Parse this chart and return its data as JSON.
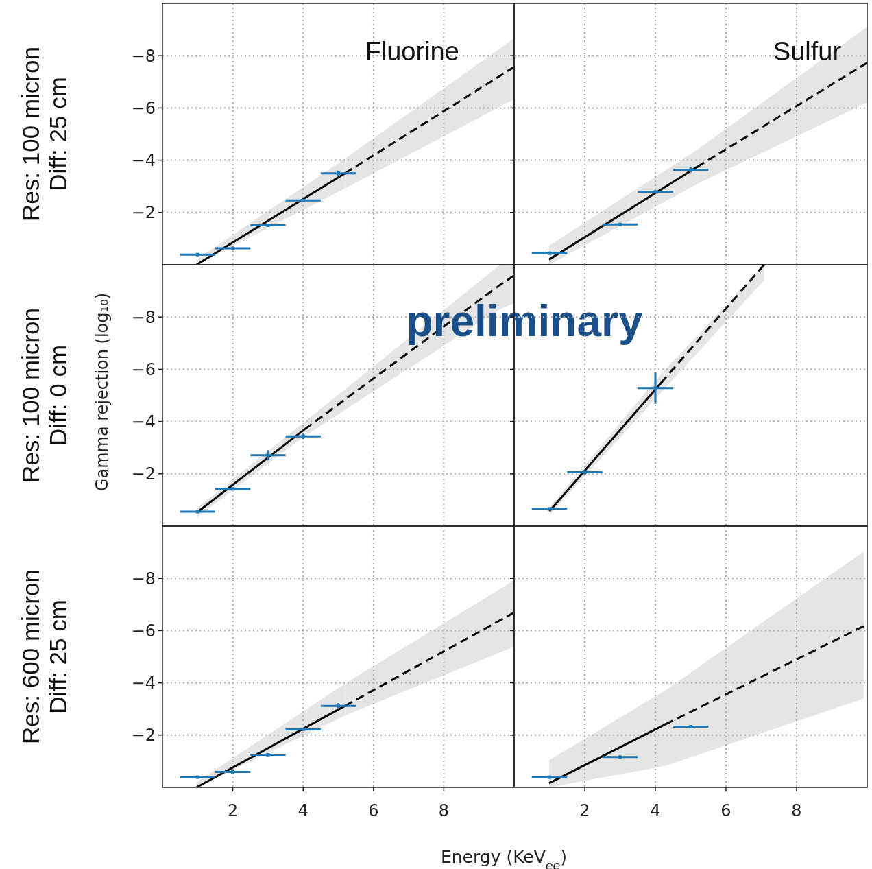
{
  "chart_data": [
    {
      "type": "scatter",
      "title": "Fluorine",
      "annotations": [
        "Res: 100 micron\nDiff: 25 cm"
      ],
      "xlim": [
        0,
        10
      ],
      "ylim": [
        0,
        -10
      ],
      "xticks": [
        2,
        4,
        6,
        8
      ],
      "yticks": [
        {
          "value": -8,
          "label": "−8"
        },
        {
          "value": -6,
          "label": "−6"
        },
        {
          "value": -4,
          "label": "−4"
        },
        {
          "value": -2,
          "label": "−2"
        }
      ],
      "grid": true,
      "tick_labels": "y",
      "series": [
        {
          "color": "#1f77b4",
          "x": [
            1,
            2,
            3,
            4,
            5
          ],
          "values": [
            -0.39,
            -0.63,
            -1.51,
            -2.46,
            -3.5
          ],
          "xerrors": [
            0.5,
            0.5,
            0.5,
            0.5,
            0.5
          ],
          "errors": [
            null,
            null,
            null,
            null,
            0.1
          ]
        },
        {
          "type": "line",
          "color": "#000000",
          "line_style": "solid",
          "x": [
            0.97,
            5.19
          ],
          "values": [
            0,
            -3.5
          ],
          "lower": [
            -0.2,
            -4.06
          ],
          "upper": [
            0,
            -2.92
          ]
        },
        {
          "type": "line",
          "color": "#000000",
          "line_style": "dashed",
          "x": [
            5.19,
            10
          ],
          "values": [
            -3.5,
            -7.57
          ],
          "lower": [
            -4.06,
            -8.67
          ],
          "upper": [
            -2.92,
            -6.34
          ]
        }
      ]
    },
    {
      "type": "scatter",
      "title": "Sulfur",
      "xlim": [
        0,
        10
      ],
      "ylim": [
        0,
        -10
      ],
      "xticks": [
        2,
        4,
        6,
        8
      ],
      "yticks": [
        {
          "value": -8,
          "label": null
        },
        {
          "value": -6,
          "label": null
        },
        {
          "value": -4,
          "label": null
        },
        {
          "value": -2,
          "label": null
        }
      ],
      "grid": true,
      "tick_labels": false,
      "series": [
        {
          "color": "#1f77b4",
          "x": [
            1,
            3,
            4,
            5
          ],
          "values": [
            -0.44,
            -1.54,
            -2.79,
            -3.63
          ],
          "xerrors": [
            0.5,
            0.5,
            0.5,
            0.5
          ],
          "errors": [
            null,
            null,
            null,
            0.1
          ]
        },
        {
          "type": "line",
          "color": "#000000",
          "line_style": "solid",
          "x": [
            0.99,
            5.19
          ],
          "values": [
            -0.2,
            -3.75
          ],
          "lower": [
            -0.73,
            -4.41
          ],
          "upper": [
            0,
            -3.1
          ]
        },
        {
          "type": "line",
          "color": "#000000",
          "line_style": "dashed",
          "x": [
            5.19,
            10
          ],
          "values": [
            -3.75,
            -7.73
          ],
          "lower": [
            -4.41,
            -9.1
          ],
          "upper": [
            -3.1,
            -6.21
          ]
        }
      ]
    },
    {
      "type": "scatter",
      "ylabel": "Gamma rejection (log₁₀)",
      "annotations": [
        "Res: 100 micron\nDiff: 0 cm",
        "preliminary"
      ],
      "xlim": [
        0,
        10
      ],
      "ylim": [
        0,
        -10
      ],
      "xticks": [
        2,
        4,
        6,
        8
      ],
      "yticks": [
        {
          "value": -8,
          "label": "−8"
        },
        {
          "value": -6,
          "label": "−6"
        },
        {
          "value": -4,
          "label": "−4"
        },
        {
          "value": -2,
          "label": "−2"
        }
      ],
      "grid": true,
      "tick_labels": "y",
      "series": [
        {
          "color": "#1f77b4",
          "x": [
            1,
            2,
            3,
            4
          ],
          "values": [
            -0.55,
            -1.42,
            -2.71,
            -3.43
          ],
          "xerrors": [
            0.5,
            0.5,
            0.5,
            0.5
          ],
          "errors": [
            null,
            null,
            0.2,
            0.1
          ]
        },
        {
          "type": "line",
          "color": "#000000",
          "line_style": "solid",
          "x": [
            0.99,
            4.05
          ],
          "values": [
            -0.53,
            -3.71
          ],
          "lower": [
            -0.7,
            -4.0
          ],
          "upper": [
            -0.35,
            -3.45
          ]
        },
        {
          "type": "line",
          "color": "#000000",
          "line_style": "dashed",
          "x": [
            4.05,
            9.6,
            10
          ],
          "values": [
            -3.71,
            -9.23,
            -9.59
          ],
          "lower": [
            -4.0,
            -10,
            -10
          ],
          "upper": [
            -3.45,
            -8.3,
            -8.54
          ]
        }
      ]
    },
    {
      "type": "scatter",
      "xlim": [
        0,
        10
      ],
      "ylim": [
        0,
        -10
      ],
      "xticks": [
        2,
        4,
        6,
        8
      ],
      "yticks": [
        {
          "value": -8,
          "label": null
        },
        {
          "value": -6,
          "label": null
        },
        {
          "value": -4,
          "label": null
        },
        {
          "value": -2,
          "label": null
        }
      ],
      "grid": true,
      "tick_labels": false,
      "series": [
        {
          "color": "#1f77b4",
          "x": [
            1,
            2,
            4
          ],
          "values": [
            -0.66,
            -2.06,
            -5.28
          ],
          "xerrors": [
            0.5,
            0.5,
            0.5
          ],
          "errors": [
            null,
            0.1,
            0.6
          ]
        },
        {
          "type": "line",
          "color": "#000000",
          "line_style": "solid",
          "x": [
            1.0,
            4.15
          ],
          "values": [
            -0.57,
            -5.46
          ],
          "lower": [
            -0.72,
            -5.8
          ],
          "upper": [
            -0.42,
            -5.1
          ]
        },
        {
          "type": "line",
          "color": "#000000",
          "line_style": "dashed",
          "x": [
            4.15,
            7.08
          ],
          "values": [
            -5.46,
            -10
          ],
          "lower": [
            -5.8,
            -10
          ],
          "upper": [
            -5.1,
            -9.4
          ]
        }
      ]
    },
    {
      "type": "scatter",
      "xlabel": "Energy (KeV$_{ee}$)",
      "annotations": [
        "Res: 600 micron\nDiff: 25 cm"
      ],
      "xlim": [
        0,
        10
      ],
      "ylim": [
        0,
        -10
      ],
      "xticks": [
        2,
        4,
        6,
        8
      ],
      "yticks": [
        {
          "value": -8,
          "label": "−8"
        },
        {
          "value": -6,
          "label": "−6"
        },
        {
          "value": -4,
          "label": "−4"
        },
        {
          "value": -2,
          "label": "−2"
        }
      ],
      "grid": true,
      "series": [
        {
          "color": "#1f77b4",
          "x": [
            1,
            2,
            3,
            4,
            5
          ],
          "values": [
            -0.39,
            -0.59,
            -1.25,
            -2.22,
            -3.12
          ],
          "xerrors": [
            0.5,
            0.5,
            0.5,
            0.5,
            0.5
          ],
          "errors": [
            null,
            null,
            null,
            null,
            0.1
          ]
        },
        {
          "type": "line",
          "color": "#000000",
          "line_style": "solid",
          "x": [
            0.97,
            5.19
          ],
          "values": [
            0,
            -3.12
          ],
          "lower": [
            -0.2,
            -3.97
          ],
          "upper": [
            0,
            -2.75
          ]
        },
        {
          "type": "line",
          "color": "#000000",
          "line_style": "dashed",
          "x": [
            5.19,
            10
          ],
          "values": [
            -3.12,
            -6.69
          ],
          "lower": [
            -3.97,
            -7.92
          ],
          "upper": [
            -2.75,
            -5.39
          ]
        }
      ]
    },
    {
      "type": "scatter",
      "xlim": [
        0,
        10
      ],
      "ylim": [
        0,
        -10
      ],
      "xticks": [
        2,
        4,
        6,
        8
      ],
      "yticks": [
        {
          "value": -8,
          "label": null
        },
        {
          "value": -6,
          "label": null
        },
        {
          "value": -4,
          "label": null
        },
        {
          "value": -2,
          "label": null
        }
      ],
      "grid": true,
      "tick_labels": "x",
      "series": [
        {
          "color": "#1f77b4",
          "x": [
            1,
            3,
            5
          ],
          "values": [
            -0.39,
            -1.16,
            -2.32
          ],
          "xerrors": [
            0.5,
            0.5,
            0.5
          ]
        },
        {
          "type": "line",
          "color": "#000000",
          "line_style": "solid",
          "x": [
            0.99,
            4.28
          ],
          "values": [
            -0.16,
            -2.41
          ],
          "lower": [
            -1.04,
            -3.71
          ],
          "upper": [
            0,
            -0.82
          ]
        },
        {
          "type": "line",
          "color": "#000000",
          "line_style": "dashed",
          "x": [
            4.28,
            9.9
          ],
          "values": [
            -2.41,
            -6.17
          ],
          "lower": [
            -3.71,
            -9.02
          ],
          "upper": [
            -0.82,
            -3.4
          ]
        }
      ]
    }
  ]
}
